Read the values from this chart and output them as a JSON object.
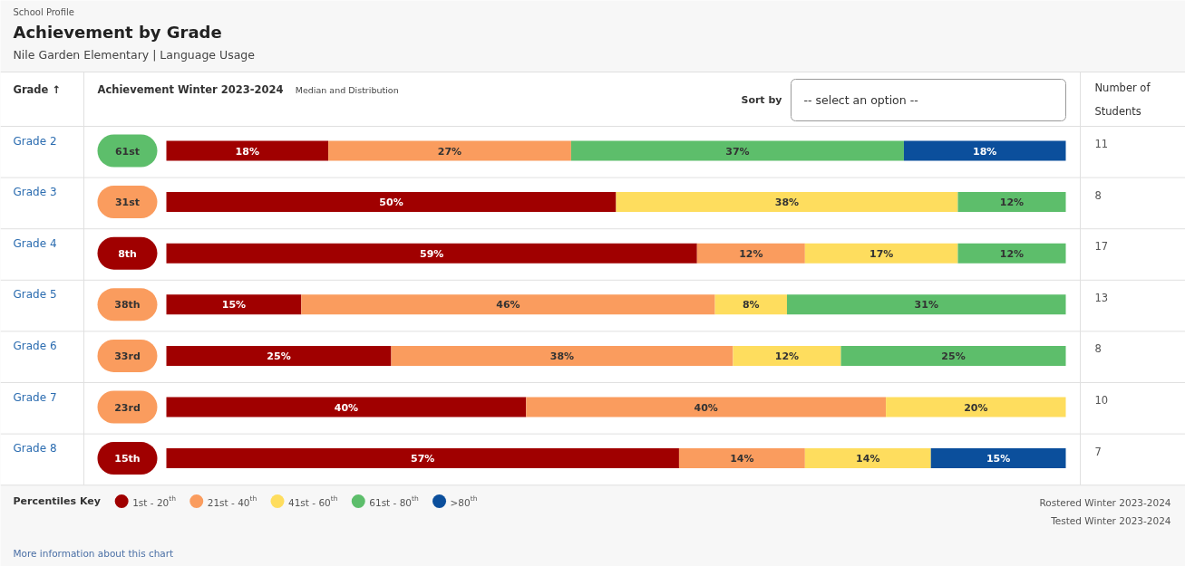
{
  "chart_data": {
    "type": "bar",
    "orientation": "horizontal",
    "stacked": true,
    "title": "Achievement by Grade",
    "subtitle": "Nile Garden Elementary | Language Usage",
    "ylabel": "Grade ↑",
    "xlabel": "Achievement Winter 2023-2024",
    "legend_title": "Percentiles Key",
    "legend": "bottom",
    "tick_labels": "y",
    "categories": [
      "Grade 2",
      "Grade 3",
      "Grade 4",
      "Grade 5",
      "Grade 6",
      "Grade 7",
      "Grade 8"
    ],
    "xlim": [
      0,
      100
    ],
    "series": [
      {
        "name": "1st - 20$^{th}$",
        "color": "#a00000",
        "values": [
          18,
          50,
          59,
          15,
          25,
          40,
          57
        ],
        "value_labels": [
          "18%",
          "50%",
          "59%",
          "15%",
          "25%",
          "40%",
          "57%"
        ]
      },
      {
        "name": "21st - 40$^{th}$",
        "color": "#fa9c5e",
        "values": [
          27,
          null,
          12,
          46,
          38,
          40,
          14
        ],
        "value_labels": [
          "27%",
          null,
          "12%",
          "46%",
          "38%",
          "40%",
          "14%"
        ]
      },
      {
        "name": "41st - 60$^{th}$",
        "color": "#fedd5e",
        "values": [
          null,
          38,
          17,
          8,
          12,
          20,
          14
        ],
        "value_labels": [
          null,
          "38%",
          "17%",
          "8%",
          "12%",
          "20%",
          "14%"
        ]
      },
      {
        "name": "61st - 80$^{th}$",
        "color": "#5dbe6b",
        "values": [
          37,
          12,
          12,
          31,
          25,
          null,
          null
        ],
        "value_labels": [
          "37%",
          "12%",
          "12%",
          "31%",
          "25%",
          null,
          null
        ]
      },
      {
        "name": ">80$^{th}$",
        "color": "#0b4f9c",
        "values": [
          18,
          null,
          null,
          null,
          null,
          null,
          15
        ],
        "value_labels": [
          "18%",
          null,
          null,
          null,
          null,
          null,
          "15%"
        ]
      }
    ],
    "annotations": [
      "School Profile",
      "Median and Distribution",
      "Sort by",
      "-- select an option --",
      "Number of Students",
      "Rostered Winter 2023-2024",
      "Tested Winter 2023-2024",
      "More information about this chart",
      "61st",
      "31st",
      "8th",
      "38th",
      "33rd",
      "23rd",
      "15th",
      "11",
      "8",
      "17",
      "13",
      "8",
      "10",
      "7"
    ]
  }
}
